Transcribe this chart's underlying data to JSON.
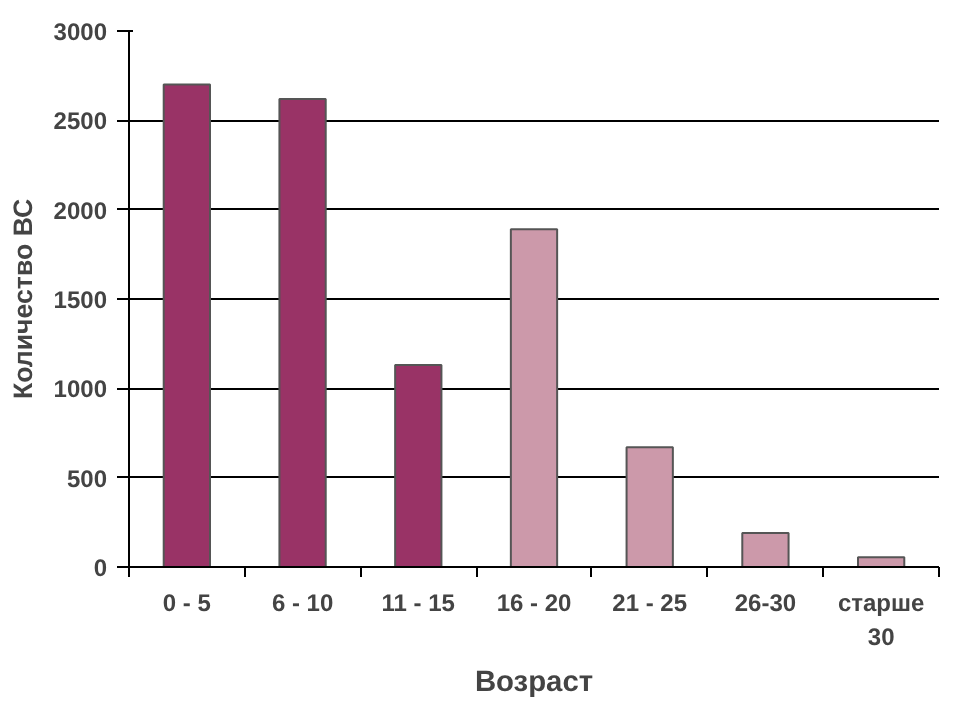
{
  "chart_data": {
    "type": "bar",
    "xlabel": "Возраст",
    "ylabel": "Количество ВС",
    "categories": [
      "0 - 5",
      "6 - 10",
      "11 - 15",
      "16 - 20",
      "21 - 25",
      "26-30",
      "старше 30"
    ],
    "values": [
      2700,
      2620,
      1130,
      1890,
      670,
      190,
      55
    ],
    "colors": [
      "#993366",
      "#993366",
      "#993366",
      "#cc99aa",
      "#cc99aa",
      "#cc99aa",
      "#cc99aa"
    ],
    "ylim": [
      0,
      3000
    ],
    "yticks": [
      0,
      500,
      1000,
      1500,
      2000,
      2500,
      3000
    ],
    "grid": "y"
  }
}
